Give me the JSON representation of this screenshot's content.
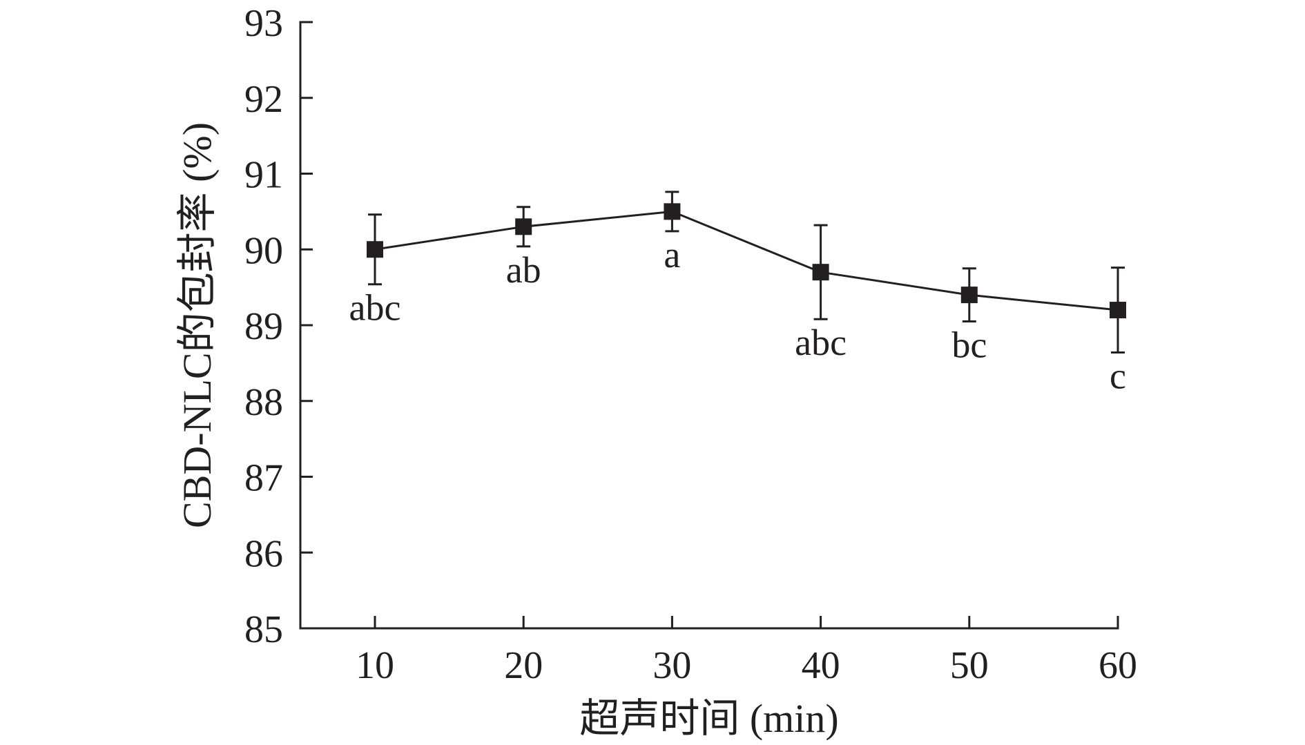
{
  "chart_data": {
    "type": "line",
    "xlabel": "超声时间 (min)",
    "ylabel": "CBD-NLC的包封率 (%)",
    "x": [
      10,
      20,
      30,
      40,
      50,
      60
    ],
    "xticks": [
      "10",
      "20",
      "30",
      "40",
      "50",
      "60"
    ],
    "yticks": [
      "85",
      "86",
      "87",
      "88",
      "89",
      "90",
      "91",
      "92",
      "93"
    ],
    "ylim": [
      85,
      93
    ],
    "series": [
      {
        "values": [
          90.0,
          90.3,
          90.5,
          89.7,
          89.4,
          89.2
        ],
        "error": [
          0.46,
          0.26,
          0.26,
          0.62,
          0.35,
          0.56
        ],
        "marker": "square"
      }
    ],
    "annotations": [
      "abc",
      "ab",
      "a",
      "abc",
      "bc",
      "c"
    ],
    "grid": false,
    "color": "#231f20"
  }
}
